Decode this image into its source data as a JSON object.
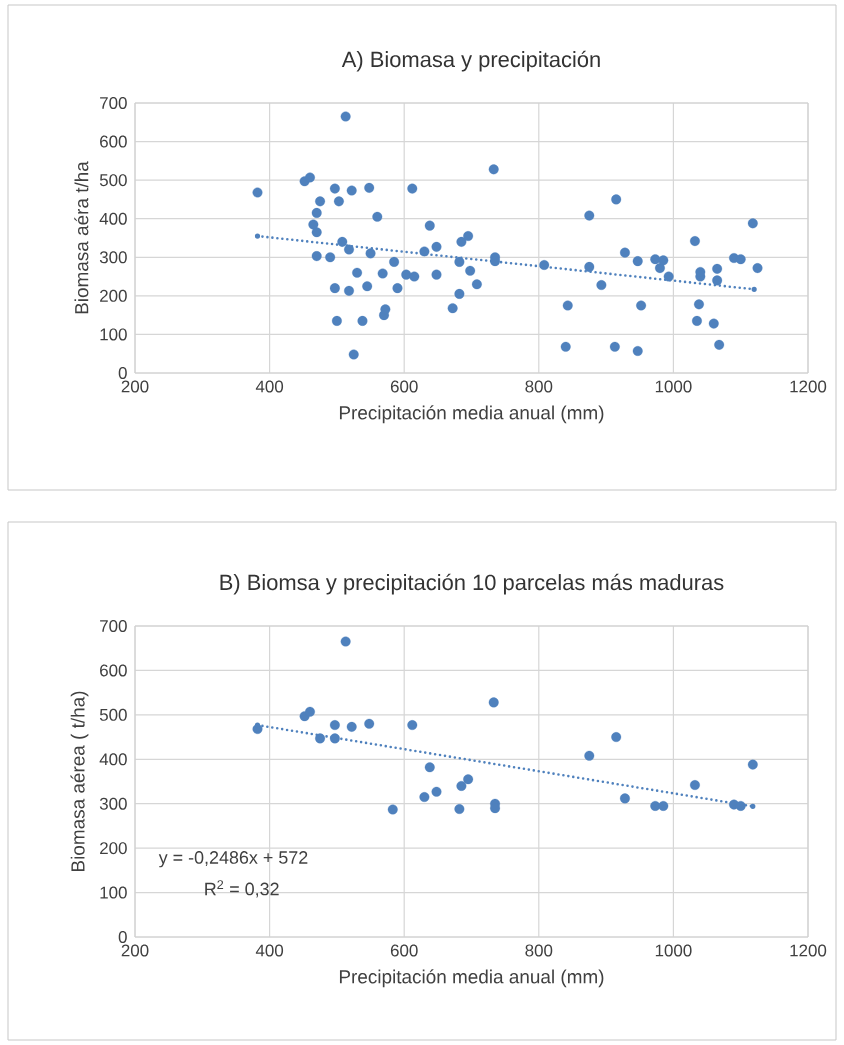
{
  "chart_data": [
    {
      "type": "scatter",
      "title": "A) Biomasa y precipitación",
      "xlabel": "Precipitación media anual (mm)",
      "ylabel": "Biomasa aéra t/ha",
      "xlim": [
        200,
        1200
      ],
      "ylim": [
        0,
        700
      ],
      "xticks": [
        200,
        400,
        600,
        800,
        1000,
        1200
      ],
      "yticks": [
        0,
        100,
        200,
        300,
        400,
        500,
        600,
        700
      ],
      "grid": true,
      "marker": "circle",
      "series": [
        {
          "color": "#4f81bd",
          "x": [
            382,
            452,
            460,
            470,
            465,
            470,
            475,
            470,
            490,
            497,
            497,
            500,
            503,
            508,
            513,
            518,
            518,
            522,
            525,
            530,
            538,
            545,
            548,
            550,
            560,
            568,
            570,
            572,
            585,
            590,
            603,
            612,
            615,
            630,
            638,
            648,
            648,
            672,
            682,
            682,
            685,
            695,
            698,
            708,
            733,
            735,
            735,
            808,
            840,
            843,
            875,
            875,
            893,
            915,
            913,
            928,
            947,
            947,
            952,
            973,
            980,
            985,
            993,
            1032,
            1035,
            1038,
            1040,
            1040,
            1060,
            1065,
            1065,
            1068,
            1090,
            1100,
            1118,
            1125
          ],
          "values": [
            468,
            497,
            507,
            365,
            385,
            415,
            445,
            303,
            300,
            478,
            220,
            135,
            445,
            340,
            665,
            320,
            213,
            473,
            48,
            260,
            135,
            225,
            480,
            310,
            405,
            258,
            150,
            165,
            288,
            220,
            255,
            478,
            250,
            315,
            382,
            327,
            255,
            168,
            288,
            205,
            340,
            355,
            265,
            230,
            528,
            300,
            290,
            280,
            68,
            175,
            408,
            275,
            228,
            450,
            68,
            312,
            290,
            57,
            175,
            295,
            272,
            292,
            250,
            342,
            135,
            178,
            250,
            262,
            128,
            270,
            240,
            73,
            298,
            295,
            388,
            272
          ]
        },
        {
          "type": "line",
          "color": "#4f81bd",
          "line_style": "dotted",
          "marker": "none",
          "x": [
            382,
            1120
          ],
          "values": [
            355,
            217
          ]
        }
      ]
    },
    {
      "type": "scatter",
      "title": "B) Biomsa y precipitación 10 parcelas más maduras",
      "xlabel": "Precipitación media anual (mm)",
      "ylabel": "Biomasa aérea ( t/ha)",
      "xlim": [
        200,
        1200
      ],
      "ylim": [
        0,
        700
      ],
      "xticks": [
        200,
        400,
        600,
        800,
        1000,
        1200
      ],
      "yticks": [
        0,
        100,
        200,
        300,
        400,
        500,
        600,
        700
      ],
      "grid": true,
      "marker": "circle",
      "annotations": [
        "y = -0,2486x + 572",
        "R$^{2}$ = 0,32"
      ],
      "series": [
        {
          "color": "#4f81bd",
          "x": [
            382,
            452,
            460,
            475,
            497,
            497,
            513,
            522,
            548,
            583,
            612,
            630,
            638,
            648,
            682,
            685,
            695,
            733,
            735,
            735,
            875,
            915,
            928,
            973,
            985,
            1032,
            1090,
            1100,
            1118
          ],
          "values": [
            468,
            497,
            507,
            447,
            477,
            447,
            665,
            473,
            480,
            287,
            477,
            315,
            382,
            327,
            288,
            340,
            355,
            528,
            300,
            290,
            408,
            450,
            312,
            295,
            295,
            342,
            298,
            295,
            388
          ]
        },
        {
          "type": "line",
          "color": "#4f81bd",
          "line_style": "dotted",
          "marker": "none",
          "x": [
            382,
            1118
          ],
          "values": [
            477,
            294
          ]
        }
      ]
    }
  ]
}
